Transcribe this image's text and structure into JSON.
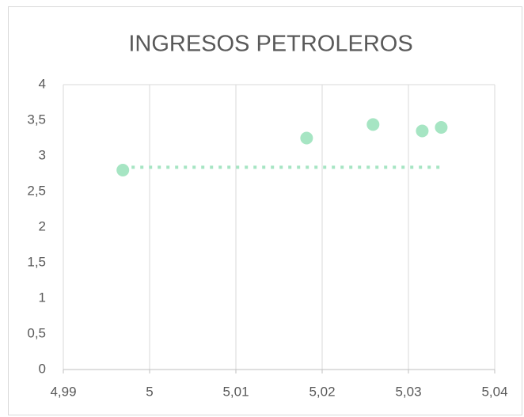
{
  "chart_data": {
    "type": "scatter",
    "title": "INGRESOS PETROLEROS",
    "x": [
      4.9969,
      5.0182,
      5.0259,
      5.0316,
      5.0338
    ],
    "values": [
      2.8,
      3.25,
      3.44,
      3.35,
      3.4
    ],
    "color": "#a6e5c3",
    "trendline": {
      "x": [
        4.9969,
        5.0338
      ],
      "values": [
        2.84,
        2.84
      ]
    },
    "xlim": [
      4.99,
      5.04
    ],
    "xticks": [
      {
        "value": 4.99,
        "label": "4,99"
      },
      5,
      {
        "value": 5.01,
        "label": "5,01"
      },
      {
        "value": 5.02,
        "label": "5,02"
      },
      {
        "value": 5.03,
        "label": "5,03"
      },
      {
        "value": 5.04,
        "label": "5,04"
      }
    ],
    "ylim": [
      0,
      4
    ],
    "yticks": [
      0,
      {
        "value": 0.5,
        "label": "0,5"
      },
      1,
      {
        "value": 1.5,
        "label": "1,5"
      },
      2,
      {
        "value": 2.5,
        "label": "2,5"
      },
      3,
      {
        "value": 3.5,
        "label": "3,5"
      },
      4
    ],
    "grid": true
  }
}
